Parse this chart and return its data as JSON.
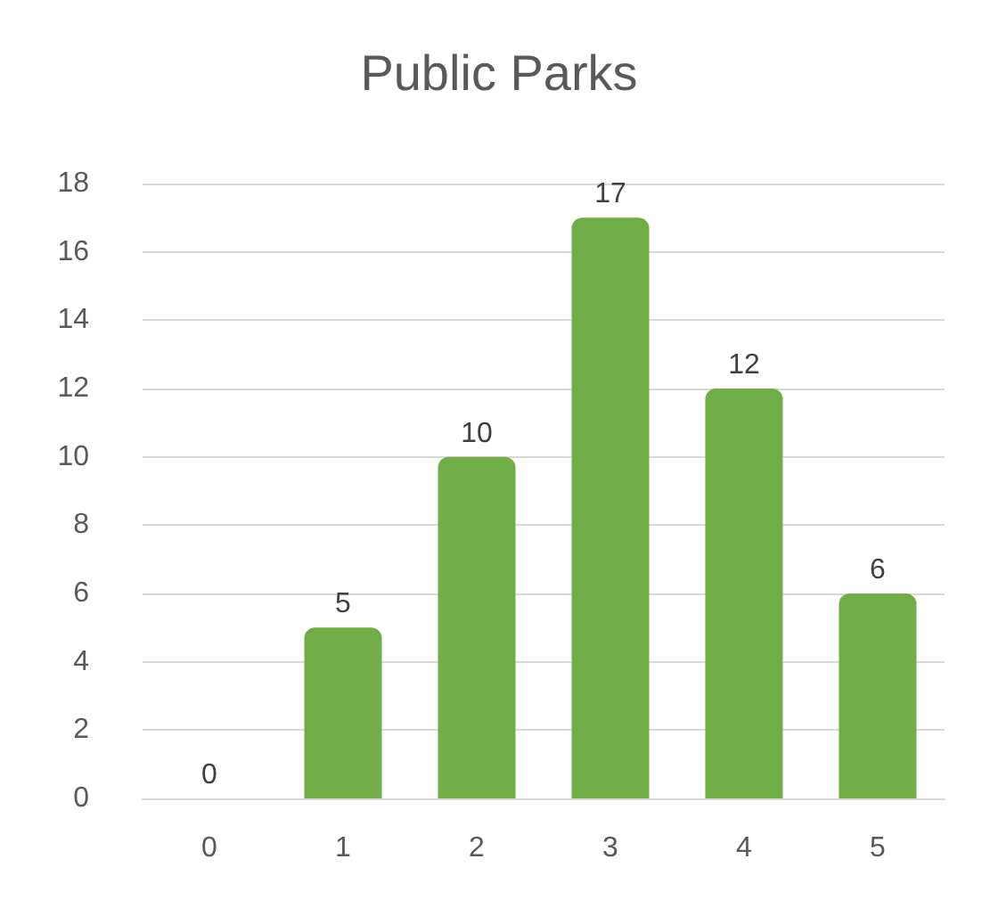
{
  "chart_data": {
    "type": "bar",
    "title": "Public Parks",
    "categories": [
      "0",
      "1",
      "2",
      "3",
      "4",
      "5"
    ],
    "values": [
      0,
      5,
      10,
      17,
      12,
      6
    ],
    "color": "#70ad47",
    "ylim": [
      0,
      18
    ],
    "yticks": [
      0,
      2,
      4,
      6,
      8,
      10,
      12,
      14,
      16,
      18
    ],
    "grid": "y",
    "data_labels": true
  }
}
